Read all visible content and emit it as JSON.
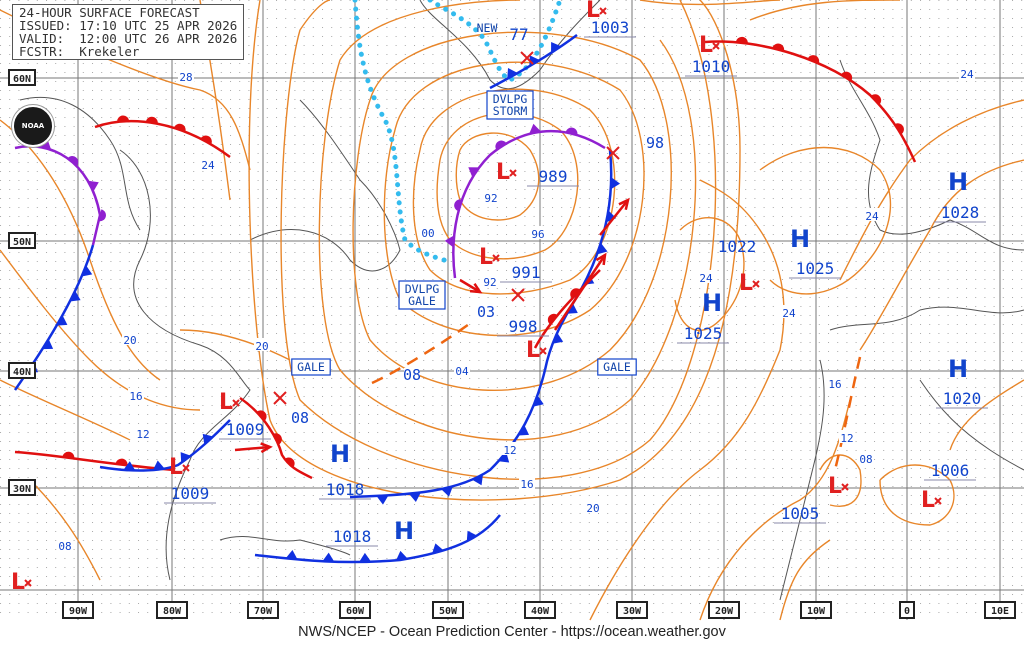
{
  "header": {
    "title": "24-HOUR SURFACE FORECAST",
    "issued": "ISSUED: 17:10 UTC 25 APR 2026",
    "valid": "VALID:  12:00 UTC 26 APR 2026",
    "forecaster": "FCSTR:  Krekeler"
  },
  "logo_text": "NOAA",
  "footer": "NWS/NCEP - Ocean Prediction Center - https://ocean.weather.gov",
  "colors": {
    "isobar": "#e8862a",
    "high": "#1144cc",
    "low": "#e02020",
    "cold_front": "#1030e0",
    "warm_front": "#e01010",
    "occluded": "#9020d0",
    "ice_edge": "#33bbee",
    "grid": "#666666"
  },
  "latitude_labels": [
    "60N",
    "50N",
    "40N",
    "30N"
  ],
  "longitude_labels": [
    "90W",
    "80W",
    "70W",
    "60W",
    "50W",
    "40W",
    "30W",
    "20W",
    "10W",
    "0",
    "10E"
  ],
  "pressure_systems": [
    {
      "type": "H",
      "pressure": "1018"
    },
    {
      "type": "H",
      "pressure": "1018"
    },
    {
      "type": "H",
      "pressure": "1025"
    },
    {
      "type": "H",
      "pressure": "1025"
    },
    {
      "type": "H",
      "pressure": "1028"
    },
    {
      "type": "H",
      "pressure": "1020"
    },
    {
      "type": "L",
      "pressure": "1010"
    },
    {
      "type": "L",
      "pressure": "1003"
    },
    {
      "type": "L",
      "pressure": "989"
    },
    {
      "type": "L",
      "pressure": "991"
    },
    {
      "type": "L",
      "pressure": "998"
    },
    {
      "type": "L",
      "pressure": "1009"
    },
    {
      "type": "L",
      "pressure": "1009"
    },
    {
      "type": "L",
      "pressure": "1005"
    },
    {
      "type": "L",
      "pressure": "1006"
    },
    {
      "type": "L",
      "pressure": ""
    },
    {
      "type": "L",
      "pressure": ""
    }
  ],
  "extra_pressure_labels": [
    "1022",
    "77"
  ],
  "warning_labels": [
    "NEW",
    "DVLPG STORM",
    "DVLPG GALE",
    "GALE",
    "GALE"
  ],
  "isobar_labels": [
    "28",
    "24",
    "20",
    "20",
    "16",
    "12",
    "08",
    "98",
    "03",
    "08",
    "04",
    "12",
    "16",
    "20",
    "24",
    "24",
    "24",
    "24",
    "16",
    "12",
    "08",
    "08",
    "92",
    "92",
    "96",
    "00"
  ]
}
